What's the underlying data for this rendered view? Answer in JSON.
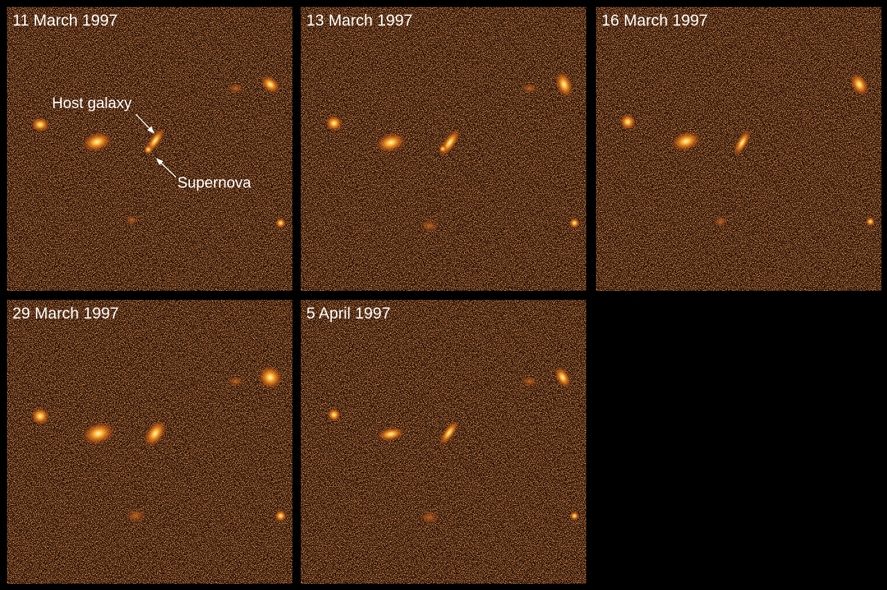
{
  "panels": [
    {
      "label": "11 March 1997"
    },
    {
      "label": "13 March 1997"
    },
    {
      "label": "16 March 1997"
    },
    {
      "label": "29 March 1997"
    },
    {
      "label": "5 April 1997"
    }
  ],
  "annotations": {
    "host_galaxy": "Host galaxy",
    "supernova": "Supernova"
  }
}
